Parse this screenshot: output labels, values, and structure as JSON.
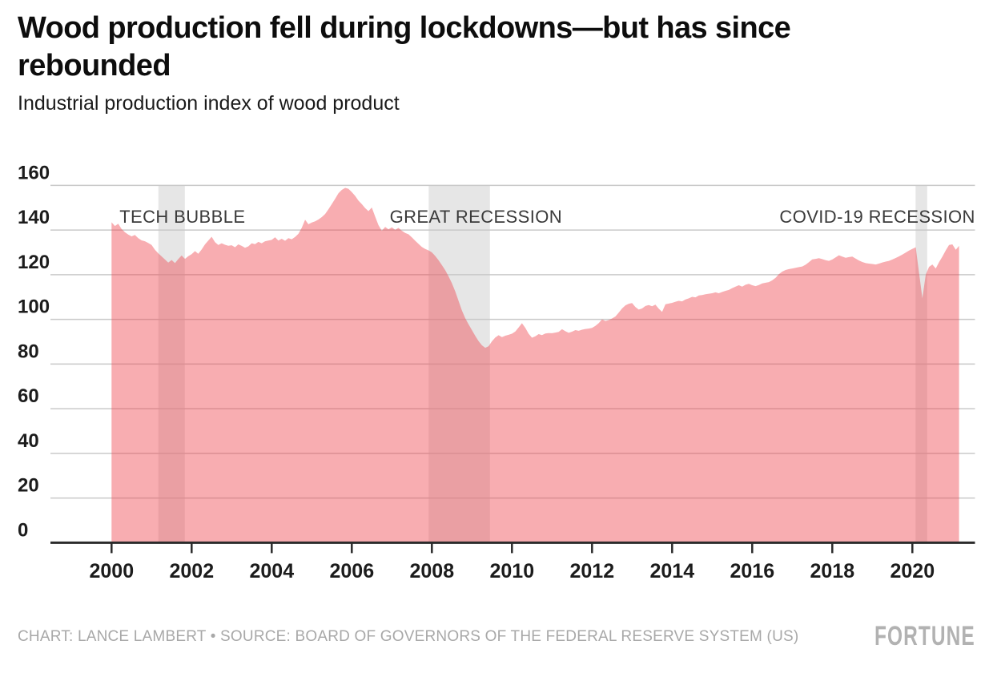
{
  "chart_data": {
    "type": "area",
    "title": "Wood production fell during lockdowns—but has since rebounded",
    "title_lines": [
      "Wood production fell during lockdowns—but has since",
      "rebounded"
    ],
    "subtitle": "Industrial production index of wood product",
    "x_start": 2000.0,
    "x_step_years": 0.0833333,
    "xlim": [
      2000.0,
      2021.17
    ],
    "ylim": [
      0,
      160
    ],
    "yticks": [
      0,
      20,
      40,
      60,
      80,
      100,
      120,
      140,
      160
    ],
    "xticks": [
      2000,
      2002,
      2004,
      2006,
      2008,
      2010,
      2012,
      2014,
      2016,
      2018,
      2020
    ],
    "grid": true,
    "legend": "none",
    "area_color": "#F04951",
    "area_opacity": 0.45,
    "band_color": "#E6E6E6",
    "gridline_color": "#C9C9C9",
    "axis_color": "#2B2B2B",
    "values": [
      143.5,
      141.8,
      142.8,
      140.5,
      139.0,
      138.0,
      137.2,
      137.8,
      136.4,
      135.4,
      135.0,
      134.2,
      133.3,
      131.2,
      129.6,
      128.2,
      126.8,
      125.4,
      126.6,
      125.2,
      127.0,
      128.6,
      127.1,
      128.3,
      129.2,
      130.6,
      129.4,
      131.3,
      133.6,
      135.3,
      137.0,
      134.6,
      133.3,
      134.1,
      133.4,
      133.0,
      133.2,
      132.3,
      133.6,
      132.9,
      132.1,
      132.7,
      134.1,
      133.7,
      134.7,
      134.1,
      135.0,
      135.3,
      135.6,
      136.8,
      135.3,
      136.1,
      135.2,
      136.4,
      135.9,
      136.9,
      138.3,
      141.0,
      144.6,
      142.6,
      143.4,
      143.9,
      144.7,
      145.8,
      147.2,
      149.3,
      151.6,
      154.0,
      156.5,
      158.0,
      158.9,
      158.5,
      157.0,
      155.3,
      153.2,
      151.6,
      149.8,
      148.5,
      150.1,
      146.0,
      142.2,
      139.7,
      141.4,
      140.3,
      141.2,
      140.1,
      141.0,
      139.7,
      138.7,
      138.1,
      136.7,
      135.2,
      133.8,
      132.4,
      131.5,
      130.9,
      130.0,
      128.4,
      126.5,
      124.3,
      122.0,
      119.3,
      116.2,
      112.5,
      108.3,
      104.0,
      100.5,
      97.8,
      95.2,
      92.6,
      90.3,
      88.4,
      87.3,
      88.0,
      90.2,
      91.9,
      92.9,
      92.1,
      92.7,
      93.1,
      93.6,
      94.6,
      96.4,
      98.3,
      96.2,
      93.6,
      91.8,
      92.4,
      93.4,
      93.0,
      93.7,
      93.9,
      93.8,
      94.1,
      94.4,
      95.6,
      94.7,
      94.0,
      94.5,
      95.2,
      94.9,
      95.4,
      95.7,
      95.9,
      96.2,
      97.1,
      98.3,
      100.0,
      99.3,
      99.7,
      100.4,
      101.3,
      103.0,
      104.9,
      106.3,
      107.0,
      107.3,
      105.5,
      104.4,
      104.9,
      106.0,
      106.4,
      105.9,
      106.6,
      104.8,
      103.4,
      106.8,
      107.1,
      107.4,
      107.9,
      108.3,
      108.1,
      108.9,
      109.4,
      110.1,
      109.9,
      110.7,
      110.9,
      111.3,
      111.5,
      111.7,
      112.1,
      111.7,
      112.3,
      112.8,
      113.2,
      114.0,
      114.7,
      115.3,
      114.7,
      115.5,
      115.9,
      115.3,
      114.9,
      115.4,
      116.1,
      116.4,
      116.7,
      117.5,
      118.6,
      120.2,
      121.4,
      122.1,
      122.5,
      122.8,
      123.1,
      123.4,
      123.7,
      124.5,
      125.6,
      126.9,
      127.1,
      127.4,
      127.0,
      126.5,
      126.2,
      126.8,
      127.8,
      128.7,
      128.1,
      127.6,
      127.9,
      128.1,
      127.2,
      126.4,
      125.7,
      125.2,
      125.0,
      124.8,
      124.6,
      125.0,
      125.5,
      125.9,
      126.2,
      126.8,
      127.5,
      128.2,
      129.0,
      129.9,
      130.8,
      131.6,
      132.3,
      121.0,
      109.5,
      120.0,
      123.5,
      124.6,
      122.8,
      125.6,
      128.1,
      130.9,
      133.3,
      133.6,
      131.2,
      132.9
    ],
    "recessions": [
      {
        "label": "TECH BUBBLE",
        "start": 2001.17,
        "end": 2001.83,
        "label_x": 2001.77,
        "label_anchor": "middle"
      },
      {
        "label": "GREAT RECESSION",
        "start": 2007.92,
        "end": 2009.45,
        "label_x": 2009.1,
        "label_anchor": "middle"
      },
      {
        "label": "COVID-19 RECESSION",
        "start": 2020.08,
        "end": 2020.37,
        "label_x": 2021.57,
        "label_anchor": "end"
      }
    ]
  },
  "footer": {
    "credit": "CHART: LANCE LAMBERT • SOURCE: BOARD OF GOVERNORS OF THE FEDERAL RESERVE SYSTEM (US)",
    "logo": "FORTUNE"
  }
}
